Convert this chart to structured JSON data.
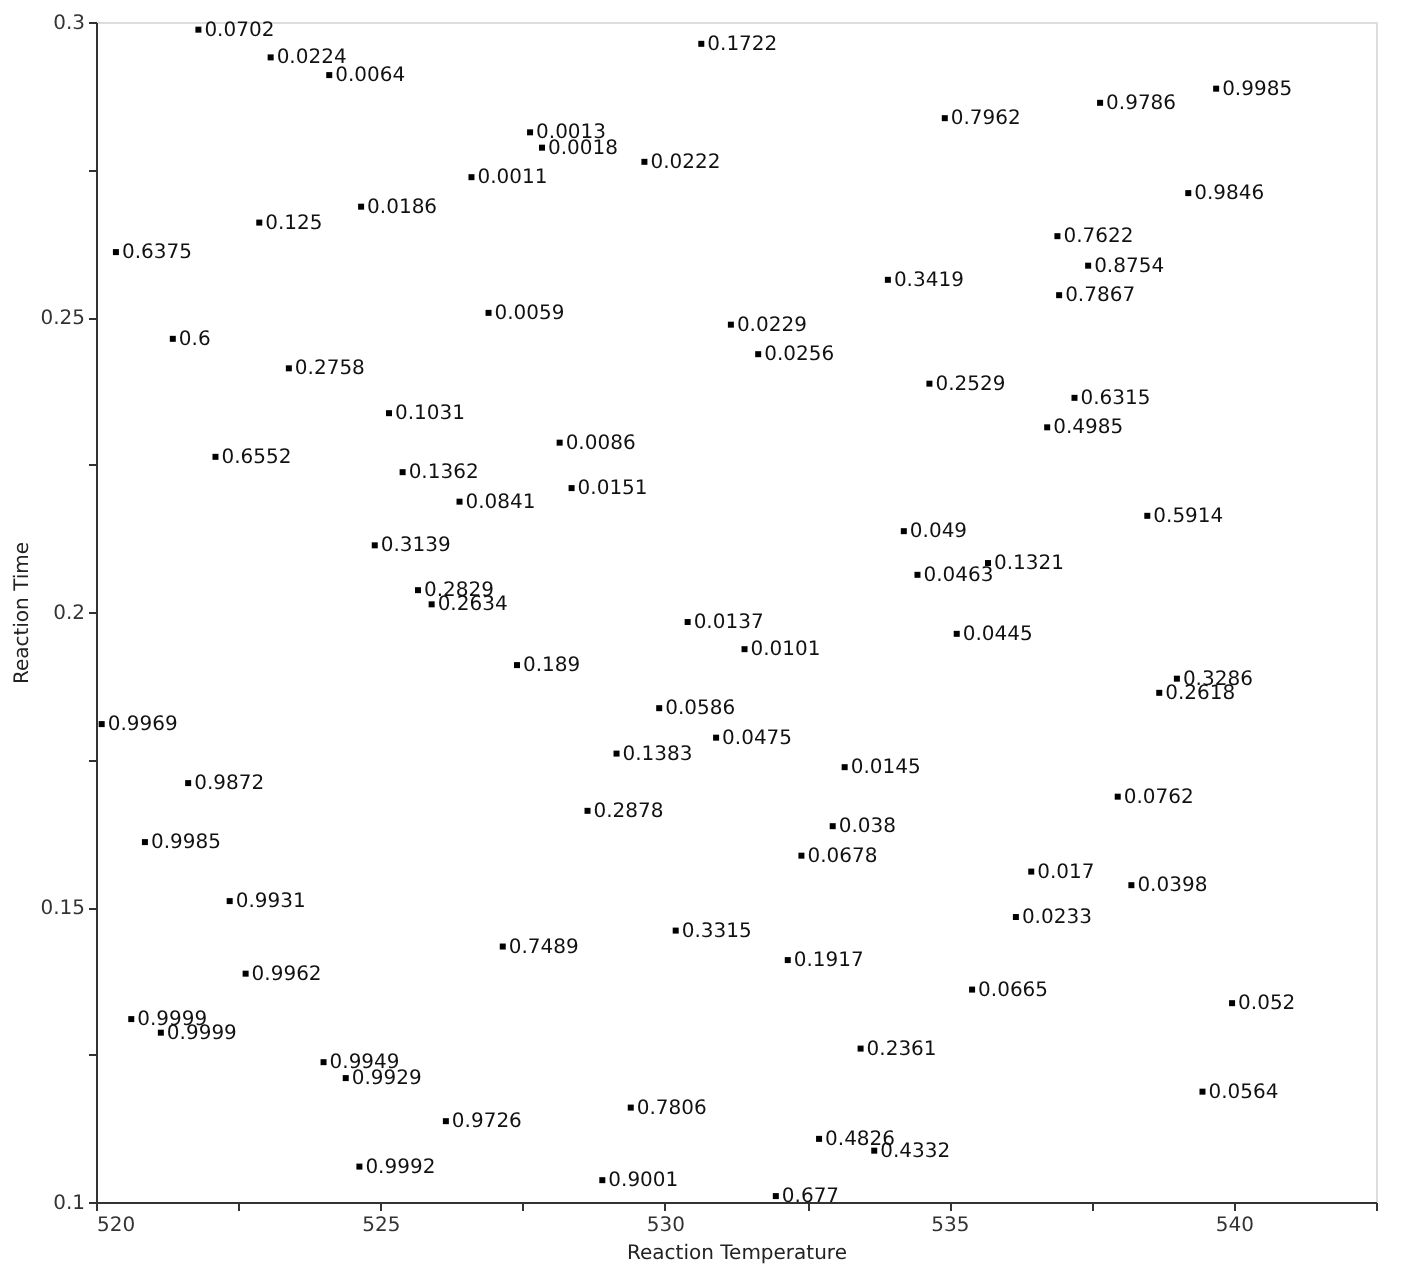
{
  "chart_data": {
    "type": "scatter",
    "xlabel": "Reaction Temperature",
    "ylabel": "Reaction Time",
    "xlim": [
      520,
      542.5
    ],
    "ylim": [
      0.1,
      0.3
    ],
    "xticks": [
      520,
      {
        "value": 522.5,
        "label": null
      },
      525,
      {
        "value": 527.5,
        "label": null
      },
      530,
      {
        "value": 532.5,
        "label": null
      },
      535,
      {
        "value": 537.5,
        "label": null
      },
      540,
      {
        "value": 542.5,
        "label": null
      }
    ],
    "yticks": [
      0.1,
      {
        "value": 0.125,
        "label": null
      },
      0.15,
      {
        "value": 0.175,
        "label": null
      },
      0.2,
      {
        "value": 0.225,
        "label": null
      },
      0.25,
      {
        "value": 0.275,
        "label": null
      },
      0.3
    ],
    "grid": false,
    "marker": "square",
    "series": [
      {
        "color": "#000000",
        "x": [
          521.8,
          523.07,
          524.1,
          527.63,
          527.84,
          526.6,
          529.64,
          530.64,
          534.92,
          537.65,
          539.69,
          539.2,
          536.9,
          537.44,
          536.93,
          533.92,
          531.16,
          531.64,
          534.65,
          537.2,
          536.72,
          538.48,
          535.68,
          534.2,
          534.44,
          535.13,
          539.0,
          538.69,
          537.96,
          536.44,
          538.2,
          536.17,
          535.4,
          539.97,
          539.45,
          530.4,
          531.4,
          529.9,
          530.9,
          529.15,
          533.16,
          528.64,
          532.95,
          532.4,
          530.19,
          532.16,
          533.44,
          529.4,
          532.71,
          533.68,
          528.9,
          531.95,
          527.4,
          527.15,
          526.9,
          528.15,
          528.36,
          526.39,
          525.39,
          525.15,
          524.9,
          525.66,
          525.9,
          524.66,
          522.87,
          520.35,
          521.35,
          523.39,
          522.1,
          520.1,
          521.62,
          520.86,
          522.35,
          522.63,
          520.62,
          521.14,
          524.0,
          524.39,
          526.15,
          524.63
        ],
        "values": [
          0.2987,
          0.294,
          0.291,
          0.2813,
          0.2787,
          0.2737,
          0.2763,
          0.2963,
          0.2837,
          0.2863,
          0.2887,
          0.271,
          0.2637,
          0.2587,
          0.2537,
          0.2563,
          0.2487,
          0.2437,
          0.2387,
          0.2363,
          0.2313,
          0.2163,
          0.2083,
          0.2137,
          0.2063,
          0.1963,
          0.1887,
          0.1863,
          0.1687,
          0.156,
          0.1537,
          0.1483,
          0.136,
          0.1337,
          0.1187,
          0.1983,
          0.1937,
          0.1837,
          0.1787,
          0.176,
          0.1737,
          0.1663,
          0.1637,
          0.1587,
          0.146,
          0.141,
          0.126,
          0.116,
          0.1107,
          0.1087,
          0.1037,
          0.101,
          0.191,
          0.1433,
          0.2507,
          0.2287,
          0.221,
          0.2187,
          0.2237,
          0.2337,
          0.2113,
          0.2037,
          0.2013,
          0.2687,
          0.266,
          0.261,
          0.2463,
          0.2413,
          0.2263,
          0.181,
          0.171,
          0.161,
          0.151,
          0.1387,
          0.131,
          0.1287,
          0.1237,
          0.121,
          0.1137,
          0.106
        ]
      }
    ],
    "annotations": [
      {
        "text": "0.0702",
        "x": 521.8,
        "y": 0.2987
      },
      {
        "text": "0.0224",
        "x": 523.07,
        "y": 0.294
      },
      {
        "text": "0.0064",
        "x": 524.1,
        "y": 0.291
      },
      {
        "text": "0.0013",
        "x": 527.63,
        "y": 0.2813
      },
      {
        "text": "0.0018",
        "x": 527.84,
        "y": 0.2787
      },
      {
        "text": "0.0011",
        "x": 526.6,
        "y": 0.2737
      },
      {
        "text": "0.0222",
        "x": 529.64,
        "y": 0.2763
      },
      {
        "text": "0.1722",
        "x": 530.64,
        "y": 0.2963
      },
      {
        "text": "0.7962",
        "x": 534.92,
        "y": 0.2837
      },
      {
        "text": "0.9786",
        "x": 537.65,
        "y": 0.2863
      },
      {
        "text": "0.9985",
        "x": 539.69,
        "y": 0.2887
      },
      {
        "text": "0.9846",
        "x": 539.2,
        "y": 0.271
      },
      {
        "text": "0.7622",
        "x": 536.9,
        "y": 0.2637
      },
      {
        "text": "0.8754",
        "x": 537.44,
        "y": 0.2587
      },
      {
        "text": "0.7867",
        "x": 536.93,
        "y": 0.2537
      },
      {
        "text": "0.3419",
        "x": 533.92,
        "y": 0.2563
      },
      {
        "text": "0.0229",
        "x": 531.16,
        "y": 0.2487
      },
      {
        "text": "0.0256",
        "x": 531.64,
        "y": 0.2437
      },
      {
        "text": "0.2529",
        "x": 534.65,
        "y": 0.2387
      },
      {
        "text": "0.6315",
        "x": 537.2,
        "y": 0.2363
      },
      {
        "text": "0.4985",
        "x": 536.72,
        "y": 0.2313
      },
      {
        "text": "0.5914",
        "x": 538.48,
        "y": 0.2163
      },
      {
        "text": "0.1321",
        "x": 535.68,
        "y": 0.2083
      },
      {
        "text": "0.049",
        "x": 534.2,
        "y": 0.2137
      },
      {
        "text": "0.0463",
        "x": 534.44,
        "y": 0.2063
      },
      {
        "text": "0.0445",
        "x": 535.13,
        "y": 0.1963
      },
      {
        "text": "0.3286",
        "x": 539.0,
        "y": 0.1887
      },
      {
        "text": "0.2618",
        "x": 538.69,
        "y": 0.1863
      },
      {
        "text": "0.0762",
        "x": 537.96,
        "y": 0.1687
      },
      {
        "text": "0.017",
        "x": 536.44,
        "y": 0.156
      },
      {
        "text": "0.0398",
        "x": 538.2,
        "y": 0.1537
      },
      {
        "text": "0.0233",
        "x": 536.17,
        "y": 0.1483
      },
      {
        "text": "0.0665",
        "x": 535.4,
        "y": 0.136
      },
      {
        "text": "0.052",
        "x": 539.97,
        "y": 0.1337
      },
      {
        "text": "0.0564",
        "x": 539.45,
        "y": 0.1187
      },
      {
        "text": "0.0137",
        "x": 530.4,
        "y": 0.1983
      },
      {
        "text": "0.0101",
        "x": 531.4,
        "y": 0.1937
      },
      {
        "text": "0.0586",
        "x": 529.9,
        "y": 0.1837
      },
      {
        "text": "0.0475",
        "x": 530.9,
        "y": 0.1787
      },
      {
        "text": "0.1383",
        "x": 529.15,
        "y": 0.176
      },
      {
        "text": "0.0145",
        "x": 533.16,
        "y": 0.1737
      },
      {
        "text": "0.2878",
        "x": 528.64,
        "y": 0.1663
      },
      {
        "text": "0.038",
        "x": 532.95,
        "y": 0.1637
      },
      {
        "text": "0.0678",
        "x": 532.4,
        "y": 0.1587
      },
      {
        "text": "0.3315",
        "x": 530.19,
        "y": 0.146
      },
      {
        "text": "0.1917",
        "x": 532.16,
        "y": 0.141
      },
      {
        "text": "0.2361",
        "x": 533.44,
        "y": 0.126
      },
      {
        "text": "0.7806",
        "x": 529.4,
        "y": 0.116
      },
      {
        "text": "0.4826",
        "x": 532.71,
        "y": 0.1107
      },
      {
        "text": "0.4332",
        "x": 533.68,
        "y": 0.1087
      },
      {
        "text": "0.9001",
        "x": 528.9,
        "y": 0.1037
      },
      {
        "text": "0.677",
        "x": 531.95,
        "y": 0.101
      },
      {
        "text": "0.189",
        "x": 527.4,
        "y": 0.191
      },
      {
        "text": "0.7489",
        "x": 527.15,
        "y": 0.1433
      },
      {
        "text": "0.0059",
        "x": 526.9,
        "y": 0.2507
      },
      {
        "text": "0.0086",
        "x": 528.15,
        "y": 0.2287
      },
      {
        "text": "0.0151",
        "x": 528.36,
        "y": 0.221
      },
      {
        "text": "0.0841",
        "x": 526.39,
        "y": 0.2187
      },
      {
        "text": "0.1362",
        "x": 525.39,
        "y": 0.2237
      },
      {
        "text": "0.1031",
        "x": 525.15,
        "y": 0.2337
      },
      {
        "text": "0.3139",
        "x": 524.9,
        "y": 0.2113
      },
      {
        "text": "0.2829",
        "x": 525.66,
        "y": 0.2037
      },
      {
        "text": "0.2634",
        "x": 525.9,
        "y": 0.2013
      },
      {
        "text": "0.0186",
        "x": 524.66,
        "y": 0.2687
      },
      {
        "text": "0.125",
        "x": 522.87,
        "y": 0.266
      },
      {
        "text": "0.6375",
        "x": 520.35,
        "y": 0.261
      },
      {
        "text": "0.6",
        "x": 521.35,
        "y": 0.2463
      },
      {
        "text": "0.2758",
        "x": 523.39,
        "y": 0.2413
      },
      {
        "text": "0.6552",
        "x": 522.1,
        "y": 0.2263
      },
      {
        "text": "0.9969",
        "x": 520.1,
        "y": 0.181
      },
      {
        "text": "0.9872",
        "x": 521.62,
        "y": 0.171
      },
      {
        "text": "0.9985",
        "x": 520.86,
        "y": 0.161
      },
      {
        "text": "0.9931",
        "x": 522.35,
        "y": 0.151
      },
      {
        "text": "0.9962",
        "x": 522.63,
        "y": 0.1387
      },
      {
        "text": "0.9999",
        "x": 520.62,
        "y": 0.131
      },
      {
        "text": "0.9999",
        "x": 521.14,
        "y": 0.1287
      },
      {
        "text": "0.9949",
        "x": 524.0,
        "y": 0.1237
      },
      {
        "text": "0.9929",
        "x": 524.39,
        "y": 0.121
      },
      {
        "text": "0.9726",
        "x": 526.15,
        "y": 0.1137
      },
      {
        "text": "0.9992",
        "x": 524.63,
        "y": 0.106
      }
    ]
  }
}
